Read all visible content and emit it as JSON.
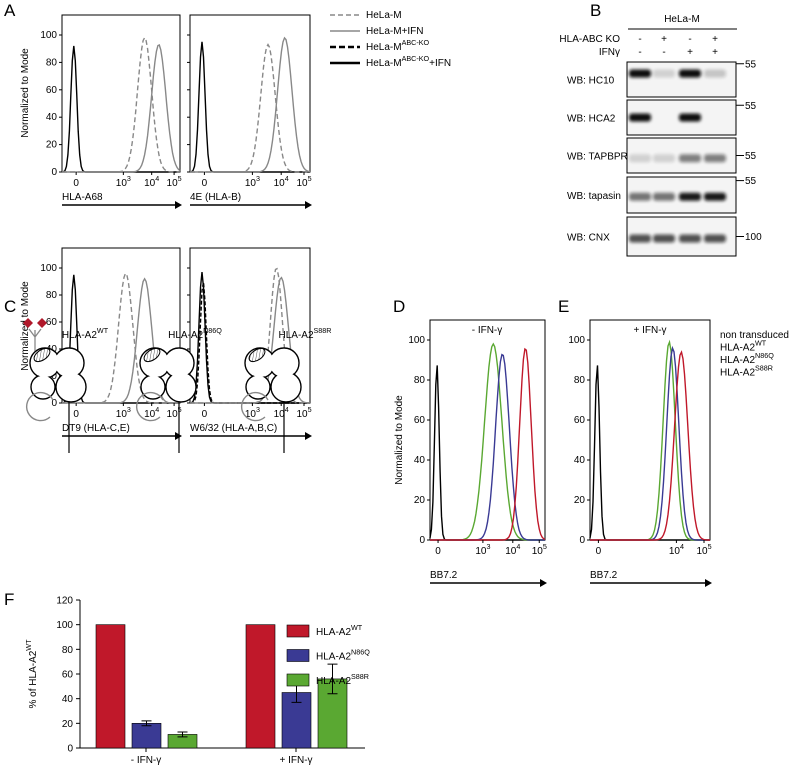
{
  "panels": {
    "A": {
      "label": "A",
      "y_label": "Normalized to Mode",
      "ylim": [
        0,
        100
      ],
      "yticks": [
        0,
        20,
        40,
        60,
        80,
        100
      ],
      "xticks": [
        {
          "text": "0"
        },
        {
          "base": "10",
          "sup": "3"
        },
        {
          "base": "10",
          "sup": "4"
        },
        {
          "base": "10",
          "sup": "5"
        }
      ],
      "plots": [
        "HLA-A68",
        "4E (HLA-B)",
        "DT9 (HLA-C,E)",
        "W6/32 (HLA-A,B,C)"
      ],
      "legend": [
        {
          "text": "HeLa-M"
        },
        {
          "text": "HeLa-M+IFN"
        },
        {
          "text": "HeLa-M",
          "sup": "ABC-KO"
        },
        {
          "text": "HeLa-M",
          "sup": "ABC-KO",
          "after": "+IFN"
        }
      ]
    },
    "B": {
      "label": "B",
      "group": "HeLa-M",
      "conditions": [
        {
          "name": "HLA-ABC KO",
          "signs": [
            "-",
            "+",
            "-",
            "+"
          ]
        },
        {
          "name": "IFNγ",
          "signs": [
            "-",
            "-",
            "+",
            "+"
          ]
        }
      ],
      "blots": [
        {
          "name": "WB: HC10",
          "marker": "55"
        },
        {
          "name": "WB: HCA2",
          "marker": "55"
        },
        {
          "name": "WB: TAPBPR",
          "marker": "55"
        },
        {
          "name": "WB: tapasin",
          "marker": "55"
        },
        {
          "name": "WB: CNX",
          "marker": "100"
        }
      ]
    },
    "C": {
      "label": "C",
      "constructs": [
        {
          "text": "HLA-A2",
          "sup": "WT"
        },
        {
          "text": "HLA-A2",
          "sup": "N86Q"
        },
        {
          "text": "HLA-A2",
          "sup": "S88R"
        }
      ]
    },
    "D": {
      "label": "D",
      "title": "- IFN-γ",
      "y_label": "Normalized to Mode",
      "x_label": "BB7.2",
      "ylim": [
        0,
        100
      ],
      "yticks": [
        0,
        20,
        40,
        60,
        80,
        100
      ],
      "xticks": [
        {
          "text": "0"
        },
        {
          "base": "10",
          "sup": "3"
        },
        {
          "base": "10",
          "sup": "4"
        },
        {
          "base": "10",
          "sup": "5"
        }
      ]
    },
    "E": {
      "label": "E",
      "title": "+ IFN-γ",
      "x_label": "BB7.2",
      "ylim": [
        0,
        100
      ],
      "yticks": [
        0,
        20,
        40,
        60,
        80,
        100
      ],
      "xticks": [
        {
          "text": "0"
        },
        {
          "base": "10",
          "sup": "4"
        },
        {
          "base": "10",
          "sup": "5"
        }
      ],
      "legend": [
        {
          "text": "non transduced",
          "color": "#000000"
        },
        {
          "text": "HLA-A2",
          "sup": "WT",
          "color": "#c0182a"
        },
        {
          "text": "HLA-A2",
          "sup": "N86Q",
          "color": "#3a3a94"
        },
        {
          "text": "HLA-A2",
          "sup": "S88R",
          "color": "#5aa832"
        }
      ]
    },
    "F": {
      "label": "F",
      "type": "bar",
      "y_label": {
        "text": "% of HLA-A2",
        "sup": "WT"
      },
      "categories": [
        "- IFN-γ",
        "+ IFN-γ"
      ],
      "ylim": [
        0,
        120
      ],
      "yticks": [
        0,
        20,
        40,
        60,
        80,
        100,
        120
      ],
      "series": [
        {
          "name": {
            "text": "HLA-A2",
            "sup": "WT"
          },
          "color": "#c0182a",
          "values": [
            100,
            100
          ]
        },
        {
          "name": {
            "text": "HLA-A2",
            "sup": "N86Q"
          },
          "color": "#3a3a94",
          "values": [
            20,
            45
          ],
          "errors": [
            2,
            8
          ]
        },
        {
          "name": {
            "text": "HLA-A2",
            "sup": "S88R"
          },
          "color": "#5aa832",
          "values": [
            11,
            56
          ],
          "errors": [
            2,
            12
          ]
        }
      ]
    }
  }
}
